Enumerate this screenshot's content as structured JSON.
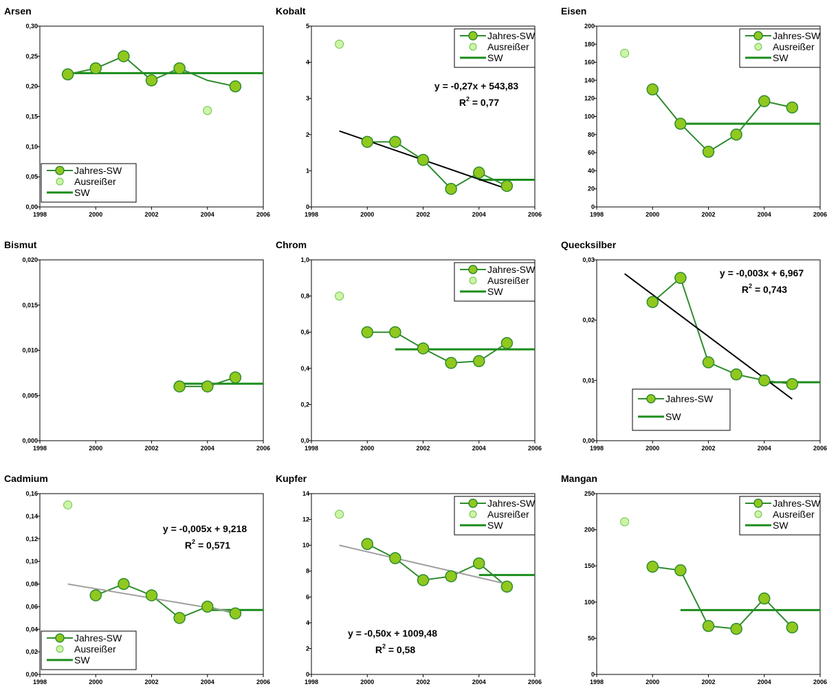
{
  "colors": {
    "series_line": "#2e8b2e",
    "series_marker_fill": "#90c81e",
    "series_marker_stroke": "#2e8b2e",
    "outlier_fill": "#ccf5a6",
    "outlier_stroke": "#6cc04a",
    "sw_line": "#1a8c1a",
    "trend_black": "#000000",
    "trend_grey": "#a0a0a0",
    "axis": "#000000"
  },
  "chart_data": [
    {
      "id": "arsen",
      "type": "line",
      "title": "Arsen",
      "xlim": [
        1998,
        2006
      ],
      "xticks": [
        "1998",
        "2000",
        "2002",
        "2004",
        "2006"
      ],
      "ylim": [
        0,
        0.3
      ],
      "yticks": [
        "0,00",
        "0,05",
        "0,10",
        "0,15",
        "0,20",
        "0,25",
        "0,30"
      ],
      "series": [
        {
          "name": "Jahres-SW",
          "x": [
            1999,
            2000,
            2001,
            2002,
            2003,
            2004,
            2005
          ],
          "y": [
            0.22,
            0.23,
            0.25,
            0.21,
            0.23,
            0.21,
            0.2
          ],
          "markers": [
            true,
            true,
            true,
            true,
            true,
            false,
            true
          ]
        },
        {
          "name": "Ausreißer",
          "x": [
            2004
          ],
          "y": [
            0.16
          ]
        },
        {
          "name": "SW",
          "x": [
            1999,
            2006
          ],
          "y": [
            0.222,
            0.222
          ]
        }
      ],
      "legend": {
        "position": "bottom-left",
        "entries": [
          "Jahres-SW",
          "Ausreißer",
          "SW"
        ]
      }
    },
    {
      "id": "kobalt",
      "type": "line",
      "title": "Kobalt",
      "xlim": [
        1998,
        2006
      ],
      "xticks": [
        "1998",
        "2000",
        "2002",
        "2004",
        "2006"
      ],
      "ylim": [
        0,
        5
      ],
      "yticks": [
        "0",
        "1",
        "2",
        "3",
        "4",
        "5"
      ],
      "series": [
        {
          "name": "Jahres-SW",
          "x": [
            2000,
            2001,
            2002,
            2003,
            2004,
            2005
          ],
          "y": [
            1.8,
            1.8,
            1.3,
            0.5,
            0.95,
            0.58
          ],
          "markers": [
            true,
            true,
            true,
            true,
            true,
            true
          ]
        },
        {
          "name": "Ausreißer",
          "x": [
            1999
          ],
          "y": [
            4.5
          ]
        },
        {
          "name": "SW",
          "x": [
            2004,
            2006
          ],
          "y": [
            0.75,
            0.75
          ]
        },
        {
          "name": "trend",
          "x": [
            1999,
            2005
          ],
          "y": [
            2.1,
            0.5
          ]
        }
      ],
      "equation": "y = -0,27x + 543,83",
      "r2": "= 0,77",
      "legend": {
        "position": "top-right",
        "entries": [
          "Jahres-SW",
          "Ausreißer",
          "SW"
        ]
      }
    },
    {
      "id": "eisen",
      "type": "line",
      "title": "Eisen",
      "xlim": [
        1998,
        2006
      ],
      "xticks": [
        "1998",
        "2000",
        "2002",
        "2004",
        "2006"
      ],
      "ylim": [
        0,
        200
      ],
      "yticks": [
        "0",
        "20",
        "40",
        "60",
        "80",
        "100",
        "120",
        "140",
        "160",
        "180",
        "200"
      ],
      "series": [
        {
          "name": "Jahres-SW",
          "x": [
            2000,
            2001,
            2002,
            2003,
            2004,
            2005
          ],
          "y": [
            130,
            92,
            61,
            80,
            117,
            110
          ],
          "markers": [
            true,
            true,
            true,
            true,
            true,
            true
          ]
        },
        {
          "name": "Ausreißer",
          "x": [
            1999
          ],
          "y": [
            170
          ]
        },
        {
          "name": "SW",
          "x": [
            2001,
            2006
          ],
          "y": [
            92,
            92
          ]
        }
      ],
      "legend": {
        "position": "top-right",
        "entries": [
          "Jahres-SW",
          "Ausreißer",
          "SW"
        ]
      }
    },
    {
      "id": "bismut",
      "type": "line",
      "title": "Bismut",
      "xlim": [
        1998,
        2006
      ],
      "xticks": [
        "1998",
        "2000",
        "2002",
        "2004",
        "2006"
      ],
      "ylim": [
        0,
        0.02
      ],
      "yticks": [
        "0,000",
        "0,005",
        "0,010",
        "0,015",
        "0,020"
      ],
      "series": [
        {
          "name": "Jahres-SW",
          "x": [
            2003,
            2004,
            2005
          ],
          "y": [
            0.006,
            0.006,
            0.007
          ],
          "markers": [
            true,
            true,
            true
          ]
        },
        {
          "name": "SW",
          "x": [
            2003,
            2006
          ],
          "y": [
            0.0063,
            0.0063
          ]
        }
      ],
      "legend": null
    },
    {
      "id": "chrom",
      "type": "line",
      "title": "Chrom",
      "xlim": [
        1998,
        2006
      ],
      "xticks": [
        "1998",
        "2000",
        "2002",
        "2004",
        "2006"
      ],
      "ylim": [
        0,
        1.0
      ],
      "yticks": [
        "0,0",
        "0,2",
        "0,4",
        "0,6",
        "0,8",
        "1,0"
      ],
      "series": [
        {
          "name": "Jahres-SW",
          "x": [
            2000,
            2001,
            2002,
            2003,
            2004,
            2005
          ],
          "y": [
            0.6,
            0.6,
            0.51,
            0.43,
            0.44,
            0.54
          ],
          "markers": [
            true,
            true,
            true,
            true,
            true,
            true
          ]
        },
        {
          "name": "Ausreißer",
          "x": [
            1999
          ],
          "y": [
            0.8
          ]
        },
        {
          "name": "SW",
          "x": [
            2001,
            2006
          ],
          "y": [
            0.505,
            0.505
          ]
        }
      ],
      "legend": {
        "position": "top-right",
        "entries": [
          "Jahres-SW",
          "Ausreißer",
          "SW"
        ]
      }
    },
    {
      "id": "quecksilber",
      "type": "line",
      "title": "Quecksilber",
      "xlim": [
        1998,
        2006
      ],
      "xticks": [
        "1998",
        "2000",
        "2002",
        "2004",
        "2006"
      ],
      "ylim": [
        0,
        0.03
      ],
      "yticks": [
        "0,00",
        "0,01",
        "0,02",
        "0,03"
      ],
      "series": [
        {
          "name": "Jahres-SW",
          "x": [
            2000,
            2001,
            2002,
            2003,
            2004,
            2005
          ],
          "y": [
            0.023,
            0.027,
            0.013,
            0.011,
            0.01,
            0.0094
          ],
          "markers": [
            true,
            true,
            true,
            true,
            true,
            true
          ]
        },
        {
          "name": "SW",
          "x": [
            2004,
            2006
          ],
          "y": [
            0.0097,
            0.0097
          ]
        },
        {
          "name": "trend",
          "x": [
            1999,
            2005
          ],
          "y": [
            0.0277,
            0.0069
          ]
        }
      ],
      "equation": "y = -0,003x + 6,967",
      "r2": "= 0,743",
      "legend": {
        "position": "bottom-left",
        "entries": [
          "Jahres-SW",
          "SW"
        ]
      }
    },
    {
      "id": "cadmium",
      "type": "line",
      "title": "Cadmium",
      "xlim": [
        1998,
        2006
      ],
      "xticks": [
        "1998",
        "2000",
        "2002",
        "2004",
        "2006"
      ],
      "ylim": [
        0,
        0.16
      ],
      "yticks": [
        "0,00",
        "0,02",
        "0,04",
        "0,06",
        "0,08",
        "0,10",
        "0,12",
        "0,14",
        "0,16"
      ],
      "series": [
        {
          "name": "Jahres-SW",
          "x": [
            2000,
            2001,
            2002,
            2003,
            2004,
            2005
          ],
          "y": [
            0.07,
            0.08,
            0.07,
            0.05,
            0.06,
            0.054
          ],
          "markers": [
            true,
            true,
            true,
            true,
            true,
            true
          ]
        },
        {
          "name": "Ausreißer",
          "x": [
            1999
          ],
          "y": [
            0.15
          ]
        },
        {
          "name": "SW",
          "x": [
            2004,
            2006
          ],
          "y": [
            0.057,
            0.057
          ]
        },
        {
          "name": "trend",
          "x": [
            1999,
            2005
          ],
          "y": [
            0.08,
            0.055
          ]
        }
      ],
      "equation": "y = -0,005x + 9,218",
      "r2": "= 0,571",
      "legend": {
        "position": "bottom-left",
        "entries": [
          "Jahres-SW",
          "Ausreißer",
          "SW"
        ]
      }
    },
    {
      "id": "kupfer",
      "type": "line",
      "title": "Kupfer",
      "xlim": [
        1998,
        2006
      ],
      "xticks": [
        "1998",
        "2000",
        "2002",
        "2004",
        "2006"
      ],
      "ylim": [
        0,
        14
      ],
      "yticks": [
        "0",
        "2",
        "4",
        "6",
        "8",
        "10",
        "12",
        "14"
      ],
      "series": [
        {
          "name": "Jahres-SW",
          "x": [
            2000,
            2001,
            2002,
            2003,
            2004,
            2005
          ],
          "y": [
            10.1,
            9.0,
            7.3,
            7.6,
            8.6,
            6.8
          ],
          "markers": [
            true,
            true,
            true,
            true,
            true,
            true
          ]
        },
        {
          "name": "Ausreißer",
          "x": [
            1999
          ],
          "y": [
            12.4
          ]
        },
        {
          "name": "SW",
          "x": [
            2004,
            2006
          ],
          "y": [
            7.7,
            7.7
          ]
        },
        {
          "name": "trend",
          "x": [
            1999,
            2005
          ],
          "y": [
            10.0,
            7.0
          ]
        }
      ],
      "equation": "y = -0,50x + 1009,48",
      "r2": "= 0,58",
      "legend": {
        "position": "top-right",
        "entries": [
          "Jahres-SW",
          "Ausreißer",
          "SW"
        ]
      }
    },
    {
      "id": "mangan",
      "type": "line",
      "title": "Mangan",
      "xlim": [
        1998,
        2006
      ],
      "xticks": [
        "1998",
        "2000",
        "2002",
        "2004",
        "2006"
      ],
      "ylim": [
        0,
        250
      ],
      "yticks": [
        "0",
        "50",
        "100",
        "150",
        "200",
        "250"
      ],
      "series": [
        {
          "name": "Jahres-SW",
          "x": [
            2000,
            2001,
            2002,
            2003,
            2004,
            2005
          ],
          "y": [
            149,
            144,
            67,
            63,
            105,
            65
          ],
          "markers": [
            true,
            true,
            true,
            true,
            true,
            true
          ]
        },
        {
          "name": "Ausreißer",
          "x": [
            1999
          ],
          "y": [
            211
          ]
        },
        {
          "name": "SW",
          "x": [
            2001,
            2006
          ],
          "y": [
            89,
            89
          ]
        }
      ],
      "legend": {
        "position": "top-right",
        "entries": [
          "Jahres-SW",
          "Ausreißer",
          "SW"
        ]
      }
    }
  ]
}
